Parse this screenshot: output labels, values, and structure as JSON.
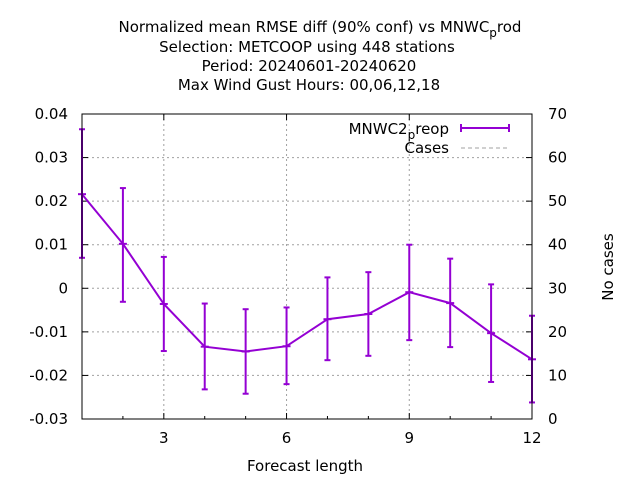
{
  "chart_data": {
    "type": "line",
    "title_lines": [
      "Normalized mean RMSE diff (90% conf) vs MNWC",
      "Selection: METCOOP using   448 stations",
      "Period: 20240601-20240620",
      "Max Wind Gust   Hours:  00,06,12,18"
    ],
    "title_subscript": "p",
    "title_subscript_rest": "rod",
    "xlabel": "Forecast length",
    "ylabel": "",
    "y2label": "No cases",
    "xlim": [
      1,
      12
    ],
    "ylim": [
      -0.03,
      0.04
    ],
    "y2lim": [
      0,
      70
    ],
    "xticks": [
      3,
      6,
      9,
      12
    ],
    "yticks": [
      -0.03,
      -0.02,
      -0.01,
      0,
      0.01,
      0.02,
      0.03,
      0.04
    ],
    "yticklabels": [
      "-0.03",
      "-0.02",
      "-0.01",
      "0",
      "0.01",
      "0.02",
      "0.03",
      "0.04"
    ],
    "y2ticks": [
      0,
      10,
      20,
      30,
      40,
      50,
      60,
      70
    ],
    "grid": true,
    "legend_position": "top-right",
    "series": [
      {
        "name": "MNWC2",
        "name_subscript": "p",
        "name_rest": "reop",
        "color": "#9400d3",
        "x": [
          1,
          2,
          3,
          4,
          5,
          6,
          7,
          8,
          9,
          10,
          11,
          12
        ],
        "y": [
          0.0216,
          0.0102,
          -0.0036,
          -0.0134,
          -0.0145,
          -0.0133,
          -0.0071,
          -0.0059,
          -0.0009,
          -0.0034,
          -0.0103,
          -0.0163
        ],
        "err_low": [
          0.007,
          -0.0031,
          -0.0144,
          -0.0232,
          -0.0242,
          -0.022,
          -0.0165,
          -0.0155,
          -0.0119,
          -0.0135,
          -0.0215,
          -0.0262
        ],
        "err_high": [
          0.0365,
          0.023,
          0.0072,
          -0.0035,
          -0.0048,
          -0.0044,
          0.0025,
          0.0037,
          0.01,
          0.0068,
          0.0009,
          -0.0063
        ]
      },
      {
        "name": "Cases",
        "color": "#a0a0a0",
        "axis": "y2",
        "dashed": true,
        "x": [],
        "y": []
      }
    ]
  },
  "colors": {
    "series": "#9400d3",
    "grid": "#a0a0a0",
    "axis": "#000000"
  }
}
